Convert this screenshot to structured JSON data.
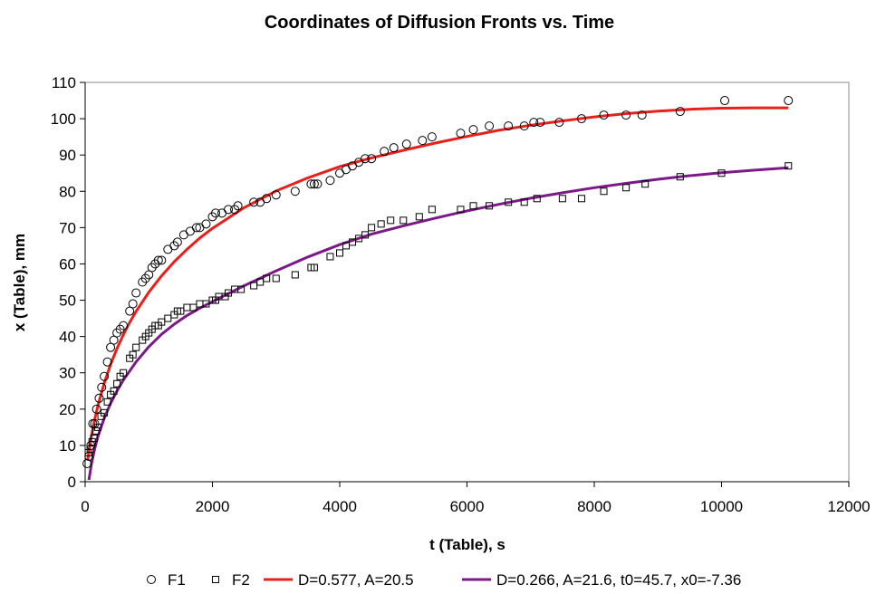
{
  "chart_data": {
    "type": "scatter",
    "title": "Coordinates of Diffusion Fronts vs. Time",
    "xlabel": "t (Table), s",
    "ylabel": "x (Table), mm",
    "xlim": [
      0,
      12000
    ],
    "ylim": [
      0,
      110
    ],
    "xticks": [
      0,
      2000,
      4000,
      6000,
      8000,
      10000,
      12000
    ],
    "yticks": [
      0,
      10,
      20,
      30,
      40,
      50,
      60,
      70,
      80,
      90,
      100,
      110
    ],
    "grid": false,
    "legend_position": "bottom",
    "series": [
      {
        "name": "F1",
        "kind": "scatter",
        "marker": "circle",
        "color": "#000000",
        "x": [
          30,
          60,
          90,
          120,
          150,
          180,
          220,
          260,
          300,
          350,
          400,
          450,
          500,
          550,
          600,
          700,
          750,
          800,
          900,
          950,
          1000,
          1050,
          1100,
          1150,
          1200,
          1300,
          1400,
          1450,
          1550,
          1650,
          1750,
          1800,
          1900,
          2000,
          2050,
          2150,
          2250,
          2350,
          2400,
          2650,
          2750,
          2850,
          3000,
          3300,
          3550,
          3600,
          3650,
          3850,
          4000,
          4100,
          4200,
          4300,
          4400,
          4500,
          4700,
          4850,
          5050,
          5300,
          5450,
          5900,
          6100,
          6350,
          6650,
          6900,
          7050,
          7150,
          7450,
          7800,
          8150,
          8500,
          8750,
          9350,
          10050,
          11050
        ],
        "y": [
          5,
          7,
          10,
          16,
          16,
          20,
          23,
          26,
          29,
          33,
          37,
          39,
          41,
          42,
          43,
          47,
          49,
          52,
          55,
          56,
          57,
          59,
          60,
          61,
          61,
          64,
          65,
          66,
          68,
          69,
          70,
          70,
          71,
          73,
          74,
          74,
          75,
          75,
          76,
          77,
          77,
          78,
          79,
          80,
          82,
          82,
          82,
          83,
          85,
          86,
          87,
          88,
          89,
          89,
          91,
          92,
          93,
          94,
          95,
          96,
          97,
          98,
          98,
          98,
          99,
          99,
          99,
          100,
          101,
          101,
          101,
          102,
          105,
          105
        ]
      },
      {
        "name": "F2",
        "kind": "scatter",
        "marker": "square",
        "color": "#000000",
        "x": [
          50,
          80,
          110,
          140,
          170,
          200,
          250,
          300,
          350,
          400,
          450,
          500,
          550,
          600,
          700,
          750,
          800,
          900,
          950,
          1000,
          1050,
          1100,
          1150,
          1200,
          1300,
          1400,
          1450,
          1500,
          1600,
          1700,
          1800,
          1900,
          2000,
          2050,
          2100,
          2200,
          2250,
          2350,
          2450,
          2650,
          2750,
          2850,
          3000,
          3300,
          3550,
          3600,
          3850,
          4000,
          4100,
          4200,
          4300,
          4400,
          4500,
          4650,
          4800,
          5000,
          5250,
          5450,
          5900,
          6100,
          6350,
          6650,
          6900,
          7100,
          7500,
          7800,
          8150,
          8500,
          8800,
          9350,
          10000,
          11050
        ],
        "y": [
          8,
          9,
          11,
          12,
          14,
          15,
          18,
          19,
          22,
          24,
          25,
          27,
          29,
          30,
          34,
          35,
          37,
          39,
          40,
          41,
          42,
          43,
          43,
          44,
          45,
          46,
          47,
          47,
          48,
          48,
          49,
          49,
          50,
          50,
          51,
          51,
          52,
          53,
          53,
          54,
          55,
          56,
          56,
          57,
          59,
          59,
          62,
          63,
          65,
          66,
          67,
          68,
          70,
          71,
          72,
          72,
          73,
          75,
          75,
          76,
          76,
          77,
          77,
          78,
          78,
          78,
          80,
          81,
          82,
          84,
          85,
          87
        ]
      },
      {
        "name": "D=0.577, A=20.5",
        "kind": "line",
        "color": "#e8201c",
        "x": [
          40,
          70,
          100,
          150,
          200,
          300,
          400,
          500,
          600,
          700,
          800,
          1000,
          1200,
          1400,
          1600,
          1800,
          2000,
          2500,
          3000,
          3500,
          4000,
          4500,
          5000,
          5500,
          6000,
          6500,
          7000,
          7500,
          8000,
          8500,
          9000,
          9500,
          10000,
          10500,
          11050
        ],
        "y": [
          5.9,
          9.5,
          12.7,
          17.1,
          20.9,
          27.2,
          32.3,
          36.7,
          40.5,
          43.9,
          46.9,
          52.2,
          56.7,
          60.6,
          64.0,
          67.1,
          69.8,
          75.5,
          80.1,
          83.7,
          86.8,
          89.2,
          91.3,
          93.3,
          95.1,
          96.8,
          98.2,
          99.4,
          100.5,
          101.4,
          102.1,
          102.6,
          102.9,
          103.0,
          103.0
        ]
      },
      {
        "name": "D=0.266, A=21.6, t0=45.7, x0=-7.36",
        "kind": "line",
        "color": "#7b1a86",
        "x": [
          60,
          100,
          150,
          200,
          300,
          400,
          500,
          600,
          800,
          1000,
          1200,
          1400,
          1600,
          1800,
          2000,
          2500,
          3000,
          3500,
          4000,
          4500,
          5000,
          5500,
          6000,
          6500,
          7000,
          7500,
          8000,
          8500,
          9000,
          9500,
          10000,
          10500,
          11050
        ],
        "y": [
          0.5,
          5.0,
          9.0,
          12.4,
          17.5,
          21.6,
          25.0,
          28.0,
          33.0,
          37.2,
          40.6,
          43.4,
          45.8,
          47.8,
          49.6,
          54.0,
          58.1,
          61.9,
          65.3,
          68.2,
          70.5,
          72.6,
          74.6,
          76.4,
          78.1,
          79.6,
          81.0,
          82.2,
          83.3,
          84.3,
          85.1,
          85.8,
          86.5
        ]
      }
    ]
  }
}
